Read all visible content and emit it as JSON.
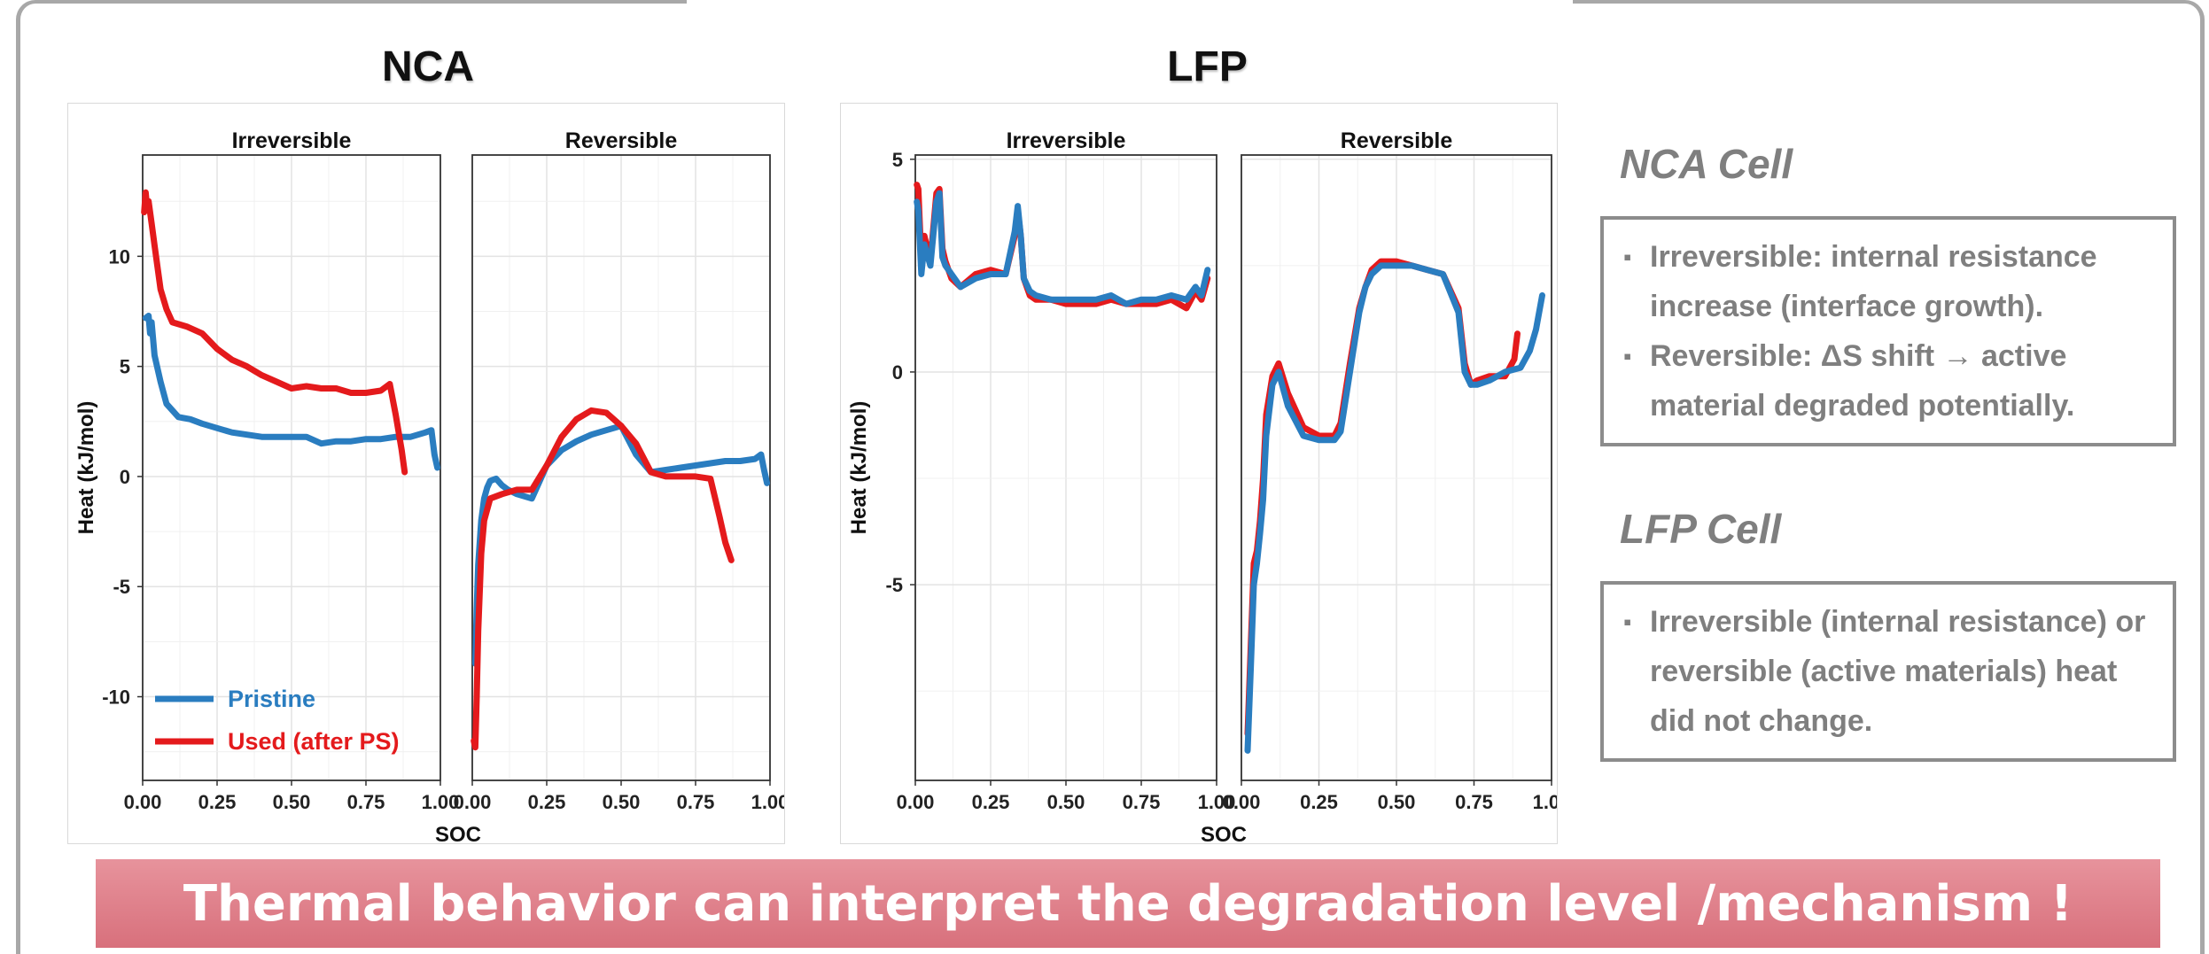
{
  "slide": {
    "banner": "Thermal behavior can interpret the degradation level /mechanism !"
  },
  "colors": {
    "pristine": "#2a7dc0",
    "used": "#e41a1c",
    "note_text": "#7f7f7f",
    "banner": "#dc7b86"
  },
  "notes": {
    "nca": {
      "heading": "NCA Cell",
      "items": [
        {
          "bullet": "▪",
          "text": "Irreversible: internal resistance increase (interface growth)."
        },
        {
          "bullet": "▪",
          "text": "Reversible: ΔS shift → active material degraded potentially."
        }
      ]
    },
    "lfp": {
      "heading": "LFP Cell",
      "items": [
        {
          "bullet": "▪",
          "text": "Irreversible (internal resistance) or reversible (active materials) heat did not change."
        }
      ]
    }
  },
  "chart_data": [
    {
      "type": "line",
      "title": "NCA",
      "xlabel": "SOC",
      "ylabel": "Heat (kJ/mol)",
      "ylim": [
        -13.8,
        14.6
      ],
      "yticks": [
        -10,
        -5,
        0,
        5,
        10
      ],
      "xticks": [
        0.0,
        0.25,
        0.5,
        0.75,
        1.0
      ],
      "grid": true,
      "legend": {
        "placement": "bottom-left",
        "entries": [
          "Pristine",
          "Used (after PS)"
        ]
      },
      "panels": [
        {
          "name": "Irreversible",
          "series": [
            {
              "name": "Pristine",
              "x": [
                0.01,
                0.02,
                0.025,
                0.03,
                0.04,
                0.06,
                0.08,
                0.12,
                0.16,
                0.2,
                0.25,
                0.3,
                0.35,
                0.4,
                0.45,
                0.5,
                0.55,
                0.6,
                0.65,
                0.7,
                0.75,
                0.8,
                0.85,
                0.9,
                0.95,
                0.97,
                0.98,
                0.99
              ],
              "y": [
                7.2,
                7.3,
                6.5,
                7.0,
                5.5,
                4.3,
                3.3,
                2.7,
                2.6,
                2.4,
                2.2,
                2.0,
                1.9,
                1.8,
                1.8,
                1.8,
                1.8,
                1.5,
                1.6,
                1.6,
                1.7,
                1.7,
                1.8,
                1.8,
                2.0,
                2.1,
                1.0,
                0.4
              ]
            },
            {
              "name": "Used (after PS)",
              "x": [
                0.005,
                0.01,
                0.015,
                0.02,
                0.03,
                0.04,
                0.05,
                0.06,
                0.08,
                0.1,
                0.15,
                0.2,
                0.25,
                0.3,
                0.35,
                0.4,
                0.45,
                0.5,
                0.55,
                0.6,
                0.65,
                0.7,
                0.75,
                0.8,
                0.83,
                0.85,
                0.87,
                0.88
              ],
              "y": [
                12.0,
                12.9,
                12.2,
                12.5,
                11.5,
                10.5,
                9.5,
                8.5,
                7.6,
                7.0,
                6.8,
                6.5,
                5.8,
                5.3,
                5.0,
                4.6,
                4.3,
                4.0,
                4.1,
                4.0,
                4.0,
                3.8,
                3.8,
                3.9,
                4.2,
                2.8,
                1.2,
                0.2
              ]
            }
          ]
        },
        {
          "name": "Reversible",
          "series": [
            {
              "name": "Pristine",
              "x": [
                0.01,
                0.015,
                0.02,
                0.03,
                0.04,
                0.05,
                0.06,
                0.08,
                0.1,
                0.12,
                0.15,
                0.2,
                0.25,
                0.3,
                0.35,
                0.4,
                0.45,
                0.5,
                0.55,
                0.6,
                0.65,
                0.7,
                0.75,
                0.8,
                0.85,
                0.9,
                0.95,
                0.97,
                0.98,
                0.99
              ],
              "y": [
                -8.5,
                -6.0,
                -4.0,
                -2.0,
                -1.0,
                -0.5,
                -0.2,
                -0.1,
                -0.4,
                -0.6,
                -0.8,
                -1.0,
                0.5,
                1.2,
                1.6,
                1.9,
                2.1,
                2.3,
                1.0,
                0.2,
                0.3,
                0.4,
                0.5,
                0.6,
                0.7,
                0.7,
                0.8,
                1.0,
                0.3,
                -0.3
              ]
            },
            {
              "name": "Used (after PS)",
              "x": [
                0.005,
                0.01,
                0.015,
                0.02,
                0.03,
                0.04,
                0.06,
                0.08,
                0.1,
                0.15,
                0.2,
                0.25,
                0.3,
                0.35,
                0.4,
                0.45,
                0.5,
                0.55,
                0.6,
                0.65,
                0.7,
                0.75,
                0.8,
                0.83,
                0.85,
                0.87
              ],
              "y": [
                -12.0,
                -12.3,
                -10.0,
                -7.0,
                -3.5,
                -2.0,
                -1.0,
                -0.9,
                -0.8,
                -0.6,
                -0.6,
                0.5,
                1.8,
                2.6,
                3.0,
                2.9,
                2.3,
                1.5,
                0.2,
                0.0,
                0.0,
                0.0,
                -0.1,
                -1.8,
                -3.0,
                -3.8
              ]
            }
          ]
        }
      ]
    },
    {
      "type": "line",
      "title": "LFP",
      "xlabel": "SOC",
      "ylabel": "Heat (kJ/mol)",
      "ylim": [
        -9.6,
        5.1
      ],
      "yticks": [
        -5,
        0,
        5
      ],
      "xticks": [
        0.0,
        0.25,
        0.5,
        0.75,
        1.0
      ],
      "grid": true,
      "panels": [
        {
          "name": "Irreversible",
          "series": [
            {
              "name": "Used (after PS)",
              "x": [
                0.005,
                0.01,
                0.02,
                0.03,
                0.05,
                0.07,
                0.08,
                0.09,
                0.1,
                0.12,
                0.15,
                0.2,
                0.25,
                0.3,
                0.33,
                0.34,
                0.35,
                0.36,
                0.38,
                0.4,
                0.45,
                0.5,
                0.55,
                0.6,
                0.65,
                0.7,
                0.75,
                0.8,
                0.85,
                0.9,
                0.93,
                0.95,
                0.97
              ],
              "y": [
                4.4,
                4.3,
                2.6,
                3.2,
                2.6,
                4.2,
                4.3,
                2.9,
                2.6,
                2.2,
                2.0,
                2.3,
                2.4,
                2.3,
                3.2,
                3.8,
                3.2,
                2.2,
                1.8,
                1.7,
                1.7,
                1.6,
                1.6,
                1.6,
                1.7,
                1.6,
                1.6,
                1.6,
                1.7,
                1.5,
                1.9,
                1.7,
                2.2
              ]
            },
            {
              "name": "Pristine",
              "x": [
                0.005,
                0.01,
                0.02,
                0.03,
                0.05,
                0.07,
                0.08,
                0.09,
                0.1,
                0.12,
                0.15,
                0.2,
                0.25,
                0.3,
                0.33,
                0.34,
                0.35,
                0.36,
                0.38,
                0.4,
                0.45,
                0.5,
                0.55,
                0.6,
                0.65,
                0.7,
                0.75,
                0.8,
                0.85,
                0.9,
                0.93,
                0.95,
                0.97
              ],
              "y": [
                4.0,
                3.8,
                2.3,
                3.0,
                2.5,
                4.0,
                4.2,
                2.7,
                2.5,
                2.3,
                2.0,
                2.2,
                2.3,
                2.3,
                3.3,
                3.9,
                3.2,
                2.2,
                1.9,
                1.8,
                1.7,
                1.7,
                1.7,
                1.7,
                1.8,
                1.6,
                1.7,
                1.7,
                1.8,
                1.7,
                2.0,
                1.8,
                2.4
              ]
            }
          ]
        },
        {
          "name": "Reversible",
          "series": [
            {
              "name": "Used (after PS)",
              "x": [
                0.02,
                0.03,
                0.04,
                0.05,
                0.06,
                0.07,
                0.08,
                0.1,
                0.12,
                0.15,
                0.2,
                0.25,
                0.3,
                0.32,
                0.35,
                0.38,
                0.4,
                0.42,
                0.45,
                0.5,
                0.55,
                0.6,
                0.65,
                0.7,
                0.72,
                0.74,
                0.76,
                0.8,
                0.85,
                0.88,
                0.89
              ],
              "y": [
                -8.5,
                -6.5,
                -4.5,
                -4.2,
                -3.5,
                -2.5,
                -1.0,
                -0.1,
                0.2,
                -0.5,
                -1.3,
                -1.5,
                -1.5,
                -1.2,
                0.2,
                1.5,
                2.0,
                2.4,
                2.6,
                2.6,
                2.5,
                2.4,
                2.3,
                1.5,
                0.2,
                -0.3,
                -0.2,
                -0.1,
                -0.1,
                0.3,
                0.9
              ]
            },
            {
              "name": "Pristine",
              "x": [
                0.02,
                0.03,
                0.04,
                0.05,
                0.06,
                0.07,
                0.08,
                0.1,
                0.12,
                0.15,
                0.2,
                0.25,
                0.3,
                0.32,
                0.35,
                0.38,
                0.4,
                0.42,
                0.45,
                0.5,
                0.55,
                0.6,
                0.65,
                0.7,
                0.72,
                0.74,
                0.76,
                0.8,
                0.85,
                0.9,
                0.93,
                0.95,
                0.97
              ],
              "y": [
                -8.9,
                -7.0,
                -5.0,
                -4.5,
                -3.8,
                -3.0,
                -1.5,
                -0.3,
                0.0,
                -0.8,
                -1.5,
                -1.6,
                -1.6,
                -1.4,
                0.0,
                1.4,
                2.0,
                2.3,
                2.5,
                2.5,
                2.5,
                2.4,
                2.3,
                1.4,
                0.0,
                -0.3,
                -0.3,
                -0.2,
                0.0,
                0.1,
                0.5,
                1.0,
                1.8
              ]
            }
          ]
        }
      ]
    }
  ]
}
